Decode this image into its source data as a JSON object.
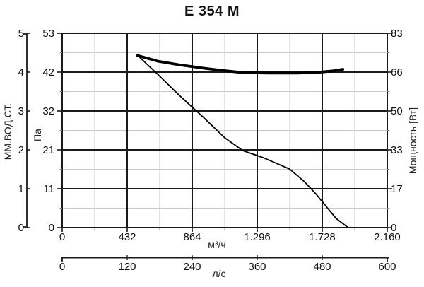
{
  "title": "E 354 M",
  "colors": {
    "background": "#ffffff",
    "curve": "#000000",
    "major_grid": "#1a1a1a",
    "minor_grid": "#c9c9c9",
    "text": "#111111"
  },
  "chart_data": {
    "type": "line",
    "title": "E 354 M",
    "x_axis_primary": {
      "label": "м³/ч",
      "ticks": [
        "0",
        "432",
        "864",
        "1.296",
        "1.728",
        "2.160"
      ],
      "range": [
        0,
        2160
      ]
    },
    "x_axis_secondary": {
      "label": "л/с",
      "ticks": [
        "0",
        "120",
        "240",
        "360",
        "480",
        "600"
      ],
      "range": [
        0,
        600
      ]
    },
    "y_axis_left_outer": {
      "label": "ММ.ВОД.СТ.",
      "ticks": [
        "0",
        "1",
        "2",
        "3",
        "4",
        "5"
      ],
      "range": [
        0,
        5
      ]
    },
    "y_axis_left_inner": {
      "label": "Па",
      "ticks": [
        "0",
        "11",
        "21",
        "32",
        "42",
        "53"
      ],
      "range": [
        0,
        53
      ]
    },
    "y_axis_right": {
      "label": "Мощность [Вт]",
      "ticks": [
        "0",
        "17",
        "33",
        "50",
        "66",
        "83"
      ],
      "range": [
        0,
        83
      ]
    },
    "grid": {
      "major": true,
      "minor": true
    },
    "legend": "none",
    "series": [
      {
        "name": "pressure-curve",
        "y_axis": "y_axis_left_inner",
        "units": [
          "м³/ч",
          "Па"
        ],
        "style": "thin",
        "points": [
          [
            500,
            47
          ],
          [
            630,
            42
          ],
          [
            780,
            36
          ],
          [
            940,
            30
          ],
          [
            1080,
            24.5
          ],
          [
            1200,
            21
          ],
          [
            1340,
            19
          ],
          [
            1510,
            16
          ],
          [
            1610,
            12.5
          ],
          [
            1690,
            9
          ],
          [
            1750,
            6
          ],
          [
            1820,
            2.5
          ],
          [
            1900,
            0
          ]
        ]
      },
      {
        "name": "power-curve",
        "y_axis": "y_axis_right",
        "units": [
          "м³/ч",
          "Вт"
        ],
        "style": "thick",
        "points": [
          [
            500,
            73.5
          ],
          [
            640,
            71
          ],
          [
            780,
            69.5
          ],
          [
            950,
            68
          ],
          [
            1080,
            67
          ],
          [
            1200,
            66.2
          ],
          [
            1370,
            66
          ],
          [
            1560,
            66
          ],
          [
            1700,
            66.3
          ],
          [
            1800,
            66.9
          ],
          [
            1865,
            67.6
          ]
        ]
      }
    ]
  }
}
